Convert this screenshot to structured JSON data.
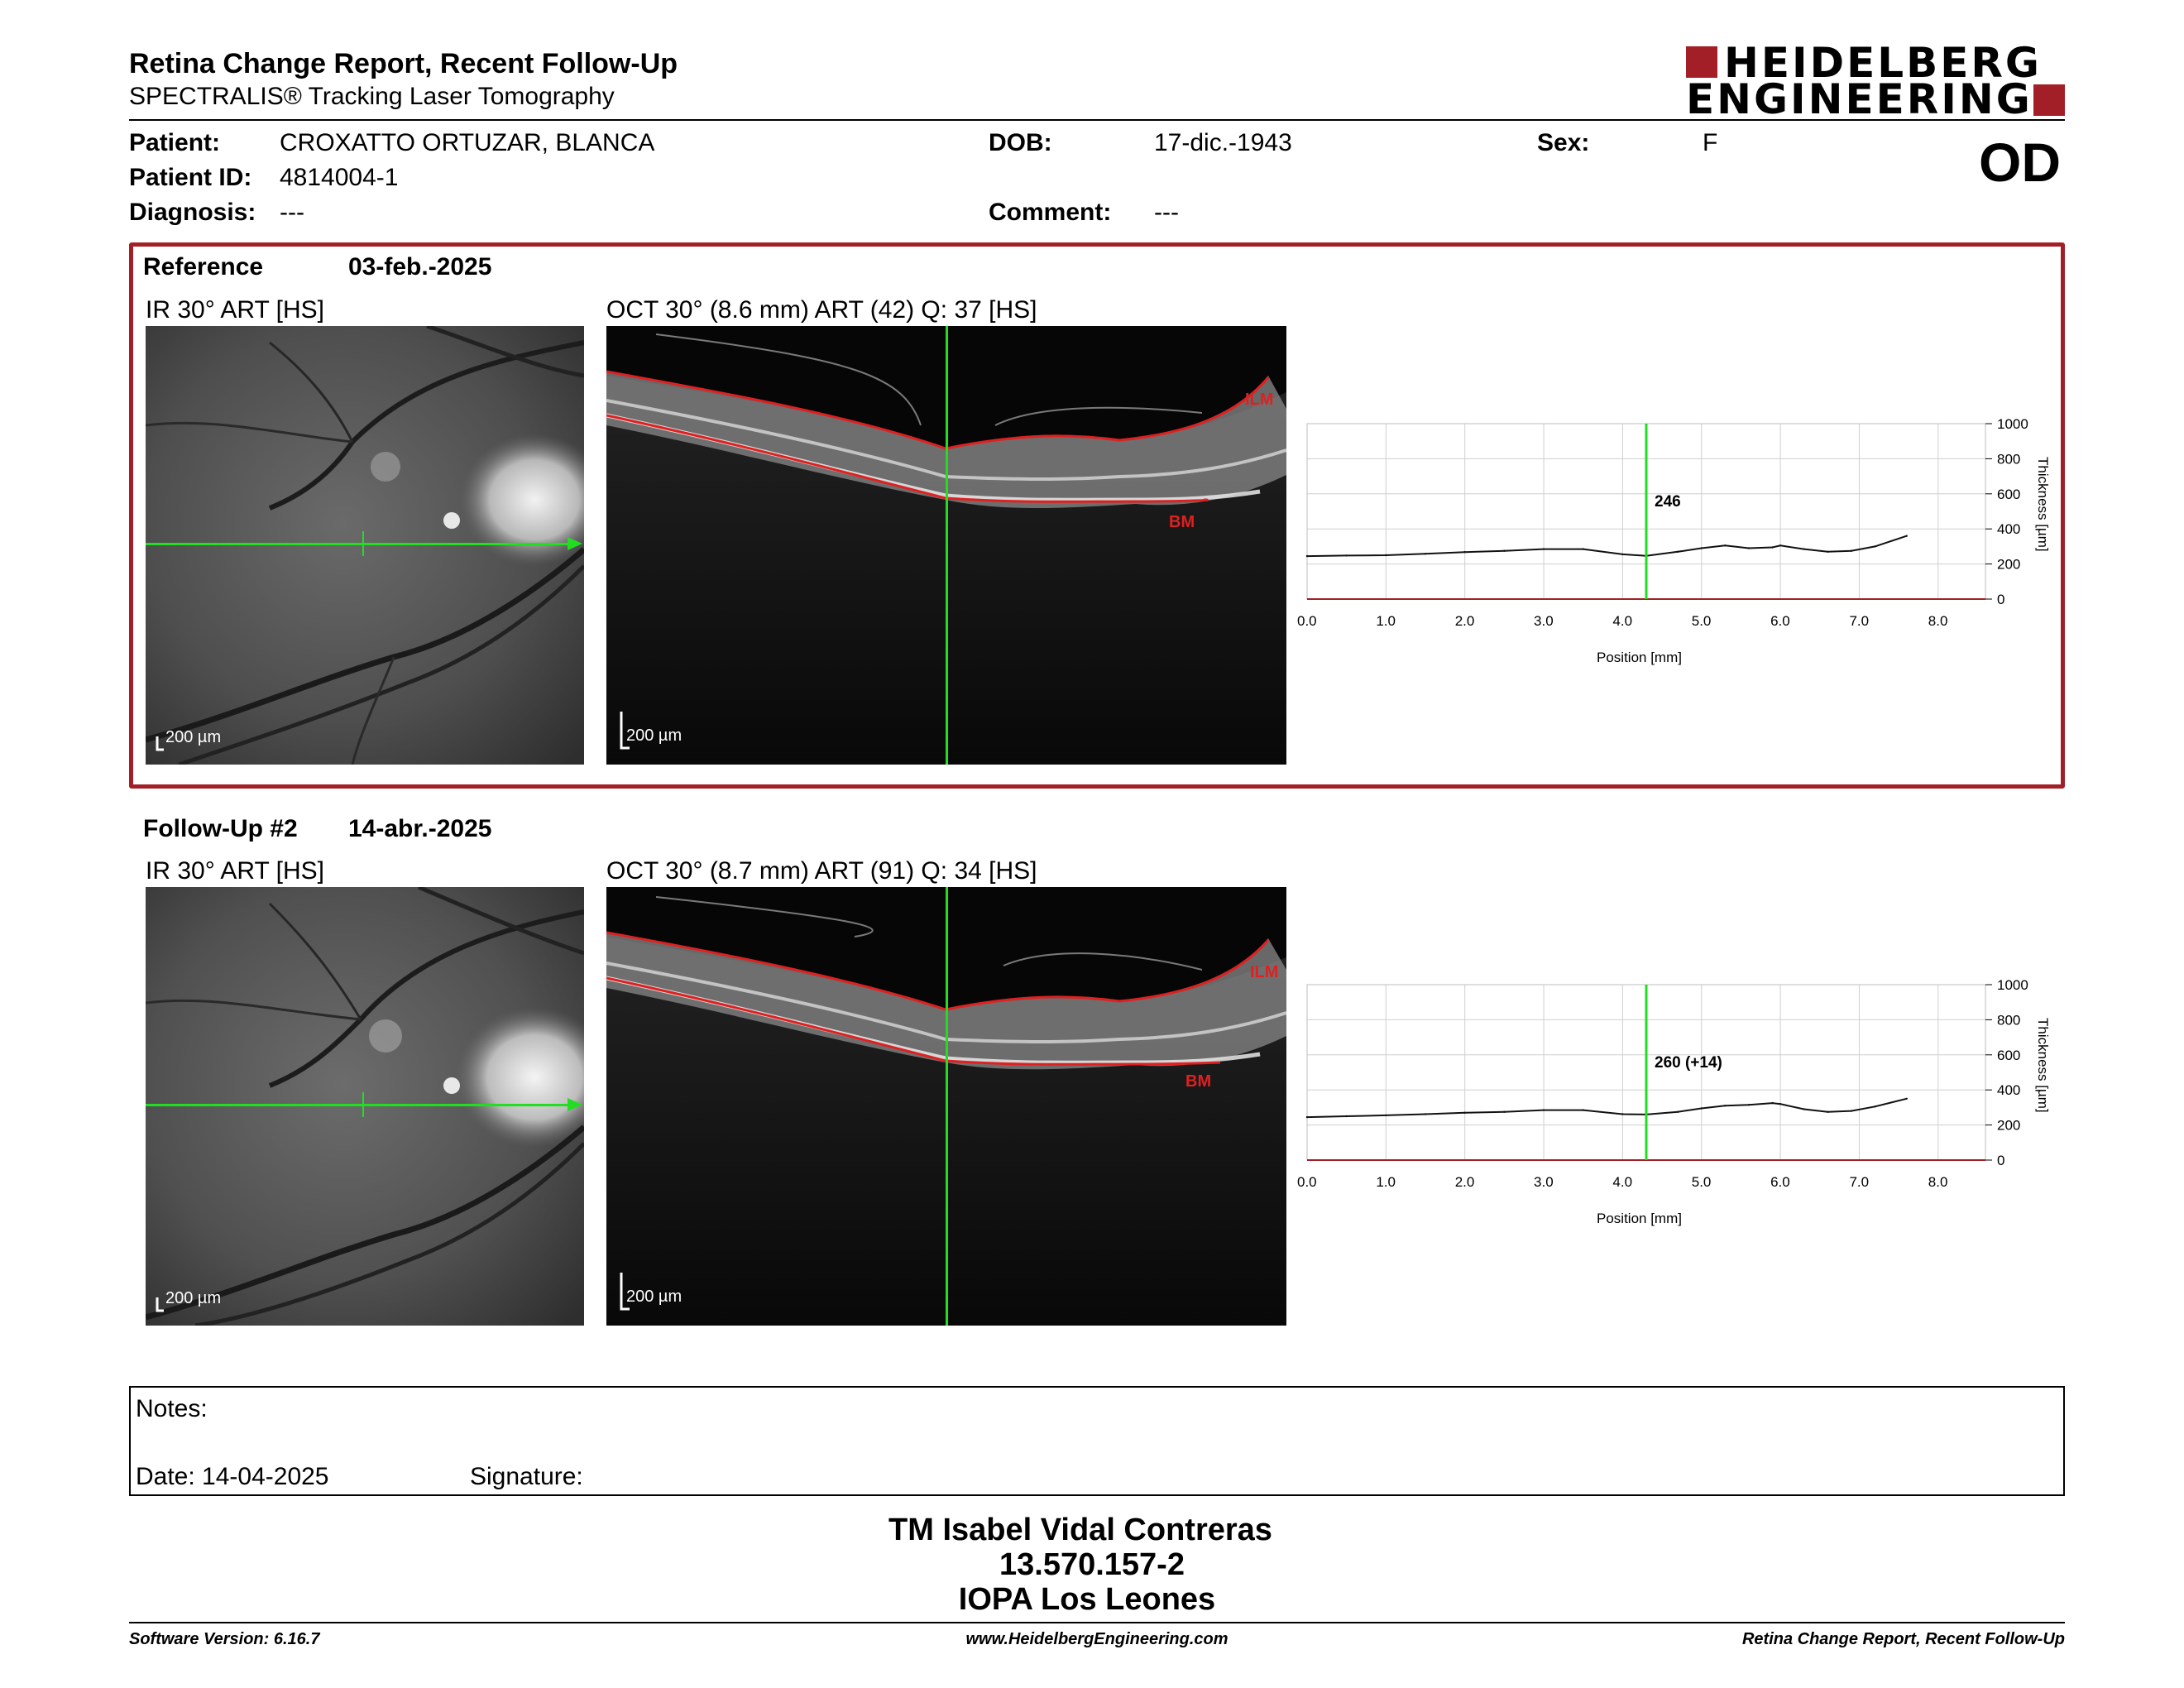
{
  "header": {
    "title": "Retina Change Report, Recent Follow-Up",
    "subtitle": "SPECTRALIS® Tracking Laser Tomography",
    "logo_line1": "HEIDELBERG",
    "logo_line2": "ENGINEERING",
    "eye": "OD"
  },
  "patient": {
    "patient_label": "Patient:",
    "patient_value": "CROXATTO ORTUZAR, BLANCA",
    "id_label": "Patient ID:",
    "id_value": "4814004-1",
    "diagnosis_label": "Diagnosis:",
    "diagnosis_value": "---",
    "dob_label": "DOB:",
    "dob_value": "17-dic.-1943",
    "comment_label": "Comment:",
    "comment_value": "---",
    "sex_label": "Sex:",
    "sex_value": "F"
  },
  "reference": {
    "label": "Reference",
    "date": "03-feb.-2025",
    "ir_caption": "IR 30° ART [HS]",
    "oct_caption": "OCT 30° (8.6 mm) ART (42) Q: 37 [HS]",
    "ir_scale": "200 µm",
    "oct_scale": "200 µm",
    "ilm": "ILM",
    "bm": "BM"
  },
  "followup": {
    "label": "Follow-Up #2",
    "date": "14-abr.-2025",
    "ir_caption": "IR 30° ART [HS]",
    "oct_caption": "OCT 30° (8.7 mm) ART (91) Q: 34 [HS]",
    "ir_scale": "200 µm",
    "oct_scale": "200 µm",
    "ilm": "ILM",
    "bm": "BM"
  },
  "chart_data": [
    {
      "type": "line",
      "xlabel": "Position [mm]",
      "ylabel": "Thickness [µm]",
      "xlim": [
        0,
        8.6
      ],
      "ylim": [
        0,
        1000
      ],
      "x_ticks": [
        "0.0",
        "1.0",
        "2.0",
        "3.0",
        "4.0",
        "5.0",
        "6.0",
        "7.0",
        "8.0"
      ],
      "y_ticks": [
        "0",
        "200",
        "400",
        "600",
        "800",
        "1000"
      ],
      "cursor_x": 4.3,
      "cursor_label": "246",
      "series": [
        {
          "x": [
            0,
            0.5,
            1,
            1.5,
            2,
            2.5,
            3,
            3.5,
            4,
            4.3,
            4.7,
            5,
            5.3,
            5.6,
            5.9,
            6,
            6.3,
            6.6,
            6.9,
            7.2,
            7.6
          ],
          "values": [
            245,
            248,
            250,
            258,
            268,
            275,
            285,
            285,
            255,
            246,
            270,
            290,
            305,
            290,
            295,
            305,
            285,
            270,
            275,
            300,
            360
          ]
        }
      ]
    },
    {
      "type": "line",
      "xlabel": "Position [mm]",
      "ylabel": "Thickness [µm]",
      "xlim": [
        0,
        8.6
      ],
      "ylim": [
        0,
        1000
      ],
      "x_ticks": [
        "0.0",
        "1.0",
        "2.0",
        "3.0",
        "4.0",
        "5.0",
        "6.0",
        "7.0",
        "8.0"
      ],
      "y_ticks": [
        "0",
        "200",
        "400",
        "600",
        "800",
        "1000"
      ],
      "cursor_x": 4.3,
      "cursor_label": "260 (+14)",
      "series": [
        {
          "x": [
            0,
            0.5,
            1,
            1.5,
            2,
            2.5,
            3,
            3.5,
            4,
            4.3,
            4.7,
            5,
            5.3,
            5.6,
            5.9,
            6,
            6.3,
            6.6,
            6.9,
            7.2,
            7.6
          ],
          "values": [
            245,
            250,
            255,
            262,
            270,
            275,
            285,
            285,
            262,
            260,
            275,
            295,
            310,
            315,
            325,
            320,
            290,
            275,
            280,
            305,
            350
          ]
        }
      ]
    }
  ],
  "notes": {
    "label": "Notes:",
    "date_label": "Date: 14-04-2025",
    "signature_label": "Signature:"
  },
  "signature": {
    "line1": "TM Isabel Vidal Contreras",
    "line2": "13.570.157-2",
    "line3": "IOPA Los Leones"
  },
  "footer": {
    "left": "Software Version: 6.16.7",
    "center": "www.HeidelbergEngineering.com",
    "right": "Retina Change Report, Recent Follow-Up"
  },
  "colors": {
    "accent": "#a31f27",
    "cursor": "#22dd22",
    "segmentation": "#e02020"
  }
}
